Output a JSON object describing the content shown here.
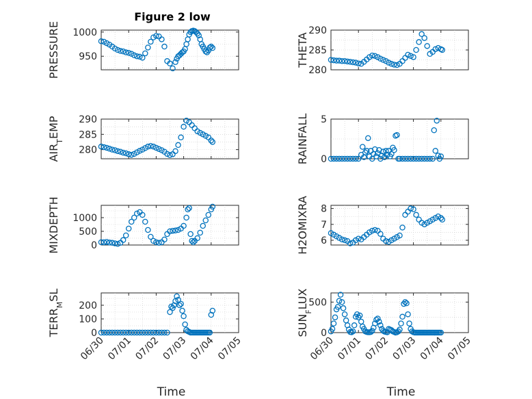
{
  "figure": {
    "title": "Figure 2 low",
    "marker_color": "#0072bd",
    "axis_color": "#262626",
    "grid_color": "#c8c8c8"
  },
  "chart_data": [
    {
      "type": "scatter",
      "panel": "pressure",
      "ylabel": "PRESSURE",
      "ylim": [
        922,
        1004
      ],
      "yticks": [
        950,
        1000
      ],
      "xlim": [
        0,
        5
      ],
      "xticks": [
        0,
        1,
        2,
        3,
        4,
        5
      ],
      "xticklabels": [
        "06/30",
        "07/01",
        "07/02",
        "07/03",
        "07/04",
        "07/05"
      ],
      "grid": true,
      "x": [
        0.0,
        0.1,
        0.2,
        0.3,
        0.4,
        0.5,
        0.6,
        0.7,
        0.8,
        0.9,
        1.0,
        1.1,
        1.2,
        1.3,
        1.4,
        1.5,
        1.6,
        1.7,
        1.8,
        1.9,
        2.0,
        2.1,
        2.2,
        2.3,
        2.4,
        2.5,
        2.6,
        2.7,
        2.75,
        2.8,
        2.85,
        2.9,
        2.95,
        3.0,
        3.05,
        3.1,
        3.15,
        3.2,
        3.25,
        3.3,
        3.35,
        3.4,
        3.45,
        3.5,
        3.55,
        3.6,
        3.65,
        3.7,
        3.75,
        3.8,
        3.85,
        3.9,
        3.95,
        4.0,
        4.05
      ],
      "y": [
        981,
        980,
        977,
        974,
        970,
        966,
        963,
        961,
        960,
        958,
        957,
        955,
        952,
        950,
        949,
        947,
        956,
        968,
        980,
        989,
        992,
        991,
        985,
        970,
        940,
        935,
        925,
        938,
        945,
        950,
        952,
        955,
        958,
        960,
        965,
        975,
        985,
        995,
        1000,
        1002,
        1003,
        1002,
        1000,
        997,
        993,
        985,
        975,
        970,
        965,
        960,
        958,
        962,
        968,
        970,
        967
      ]
    },
    {
      "type": "scatter",
      "panel": "theta",
      "ylabel": "THETA",
      "ylim": [
        280,
        290
      ],
      "yticks": [
        280,
        285,
        290
      ],
      "xlim": [
        0,
        5
      ],
      "xticks": [
        0,
        1,
        2,
        3,
        4,
        5
      ],
      "xticklabels": [
        "06/30",
        "07/01",
        "07/02",
        "07/03",
        "07/04",
        "07/05"
      ],
      "grid": true,
      "x": [
        0.0,
        0.1,
        0.2,
        0.3,
        0.4,
        0.5,
        0.6,
        0.7,
        0.8,
        0.9,
        1.0,
        1.1,
        1.2,
        1.3,
        1.4,
        1.5,
        1.6,
        1.7,
        1.8,
        1.9,
        2.0,
        2.1,
        2.2,
        2.3,
        2.4,
        2.5,
        2.6,
        2.7,
        2.8,
        2.9,
        3.0,
        3.1,
        3.2,
        3.3,
        3.4,
        3.5,
        3.6,
        3.7,
        3.8,
        3.9,
        4.0,
        4.05
      ],
      "y": [
        282.5,
        282.4,
        282.3,
        282.3,
        282.2,
        282.2,
        282.1,
        282.0,
        281.9,
        281.8,
        281.6,
        281.5,
        282.0,
        282.6,
        283.2,
        283.6,
        283.5,
        283.2,
        282.8,
        282.5,
        282.2,
        281.8,
        281.5,
        281.3,
        281.2,
        281.5,
        282.2,
        283.0,
        283.8,
        283.5,
        283.2,
        285.0,
        287.0,
        289.0,
        288.0,
        286.0,
        284.0,
        284.5,
        285.2,
        285.5,
        285.2,
        285.0
      ]
    },
    {
      "type": "scatter",
      "panel": "air_temp",
      "ylabel": "AIR_TEMP",
      "ylim": [
        277,
        290
      ],
      "yticks": [
        280,
        285,
        290
      ],
      "xlim": [
        0,
        5
      ],
      "xticks": [
        0,
        1,
        2,
        3,
        4,
        5
      ],
      "xticklabels": [
        "06/30",
        "07/01",
        "07/02",
        "07/03",
        "07/04",
        "07/05"
      ],
      "grid": true,
      "x": [
        0.0,
        0.1,
        0.2,
        0.3,
        0.4,
        0.5,
        0.6,
        0.7,
        0.8,
        0.9,
        1.0,
        1.1,
        1.2,
        1.3,
        1.4,
        1.5,
        1.6,
        1.7,
        1.8,
        1.9,
        2.0,
        2.1,
        2.2,
        2.3,
        2.4,
        2.5,
        2.6,
        2.7,
        2.8,
        2.9,
        3.0,
        3.1,
        3.2,
        3.3,
        3.4,
        3.5,
        3.6,
        3.7,
        3.8,
        3.9,
        4.0,
        4.05
      ],
      "y": [
        281.0,
        280.8,
        280.6,
        280.3,
        280.0,
        279.8,
        279.5,
        279.3,
        279.0,
        278.8,
        278.5,
        278.3,
        278.6,
        279.1,
        279.6,
        280.0,
        280.5,
        281.0,
        281.2,
        281.0,
        280.6,
        280.2,
        279.8,
        279.3,
        278.6,
        278.2,
        278.5,
        279.5,
        281.5,
        284.0,
        287.5,
        289.5,
        289.0,
        288.0,
        287.0,
        286.0,
        285.5,
        285.0,
        284.5,
        284.0,
        283.0,
        282.5
      ]
    },
    {
      "type": "scatter",
      "panel": "rainfall",
      "ylabel": "RAINFALL",
      "ylim": [
        0,
        5
      ],
      "yticks": [
        0,
        5
      ],
      "xlim": [
        0,
        5
      ],
      "xticks": [
        0,
        1,
        2,
        3,
        4,
        5
      ],
      "xticklabels": [
        "06/30",
        "07/01",
        "07/02",
        "07/03",
        "07/04",
        "07/05"
      ],
      "grid": true,
      "x": [
        0.0,
        0.1,
        0.2,
        0.3,
        0.4,
        0.5,
        0.6,
        0.7,
        0.8,
        0.9,
        1.0,
        1.1,
        1.15,
        1.2,
        1.25,
        1.3,
        1.35,
        1.4,
        1.45,
        1.5,
        1.55,
        1.6,
        1.65,
        1.7,
        1.75,
        1.8,
        1.85,
        1.9,
        1.95,
        2.0,
        2.05,
        2.1,
        2.15,
        2.2,
        2.25,
        2.3,
        2.35,
        2.4,
        2.45,
        2.5,
        2.6,
        2.7,
        2.8,
        2.9,
        3.0,
        3.1,
        3.2,
        3.3,
        3.4,
        3.5,
        3.6,
        3.7,
        3.75,
        3.8,
        3.85,
        3.9,
        3.95,
        4.0
      ],
      "y": [
        0,
        0,
        0,
        0,
        0,
        0,
        0,
        0,
        0,
        0,
        0,
        0.5,
        1.5,
        0.2,
        0.8,
        1.0,
        2.6,
        0.3,
        1.0,
        0,
        0.6,
        1.2,
        0.3,
        0.7,
        1.1,
        0,
        0.4,
        0.9,
        0.2,
        1.0,
        0.5,
        1.0,
        0.3,
        0.6,
        1.4,
        1.1,
        2.9,
        3.0,
        0,
        0,
        0,
        0,
        0,
        0,
        0,
        0,
        0,
        0,
        0,
        0,
        0,
        0,
        3.6,
        1.0,
        4.8,
        0.4,
        0,
        0.3
      ]
    },
    {
      "type": "scatter",
      "panel": "mixdepth",
      "ylabel": "MIXDEPTH",
      "ylim": [
        0,
        1450
      ],
      "yticks": [
        0,
        500,
        1000
      ],
      "xlim": [
        0,
        5
      ],
      "xticks": [
        0,
        1,
        2,
        3,
        4,
        5
      ],
      "xticklabels": [
        "06/30",
        "07/01",
        "07/02",
        "07/03",
        "07/04",
        "07/05"
      ],
      "grid": true,
      "x": [
        0.0,
        0.1,
        0.2,
        0.3,
        0.4,
        0.5,
        0.6,
        0.7,
        0.8,
        0.9,
        1.0,
        1.1,
        1.2,
        1.3,
        1.4,
        1.5,
        1.6,
        1.7,
        1.8,
        1.9,
        2.0,
        2.1,
        2.2,
        2.3,
        2.4,
        2.5,
        2.6,
        2.7,
        2.8,
        2.9,
        3.0,
        3.1,
        3.15,
        3.2,
        3.25,
        3.3,
        3.35,
        3.4,
        3.5,
        3.6,
        3.7,
        3.8,
        3.9,
        4.0,
        4.05
      ],
      "y": [
        100,
        100,
        110,
        90,
        80,
        60,
        40,
        80,
        180,
        350,
        600,
        850,
        1000,
        1150,
        1200,
        1100,
        850,
        550,
        300,
        150,
        100,
        80,
        100,
        200,
        400,
        500,
        520,
        530,
        550,
        600,
        700,
        1000,
        1300,
        1350,
        400,
        150,
        100,
        150,
        250,
        450,
        700,
        900,
        1100,
        1300,
        1400
      ]
    },
    {
      "type": "scatter",
      "panel": "h2omixra",
      "ylabel": "H2OMIXRA",
      "ylim": [
        5.7,
        8.2
      ],
      "yticks": [
        6,
        7,
        8
      ],
      "xlim": [
        0,
        5
      ],
      "xticks": [
        0,
        1,
        2,
        3,
        4,
        5
      ],
      "xticklabels": [
        "06/30",
        "07/01",
        "07/02",
        "07/03",
        "07/04",
        "07/05"
      ],
      "grid": true,
      "x": [
        0.0,
        0.1,
        0.2,
        0.3,
        0.4,
        0.5,
        0.6,
        0.7,
        0.8,
        0.9,
        1.0,
        1.1,
        1.2,
        1.3,
        1.4,
        1.5,
        1.6,
        1.7,
        1.8,
        1.9,
        2.0,
        2.1,
        2.2,
        2.3,
        2.4,
        2.5,
        2.6,
        2.7,
        2.8,
        2.9,
        3.0,
        3.1,
        3.2,
        3.3,
        3.4,
        3.5,
        3.6,
        3.7,
        3.8,
        3.9,
        4.0,
        4.05
      ],
      "y": [
        6.45,
        6.35,
        6.25,
        6.15,
        6.05,
        6.0,
        5.95,
        5.8,
        5.85,
        6.0,
        6.1,
        6.05,
        6.2,
        6.35,
        6.5,
        6.6,
        6.65,
        6.6,
        6.4,
        6.1,
        5.95,
        5.9,
        6.0,
        6.1,
        6.2,
        6.3,
        6.8,
        7.6,
        7.8,
        8.0,
        7.95,
        7.6,
        7.3,
        7.1,
        7.0,
        7.1,
        7.2,
        7.3,
        7.4,
        7.5,
        7.4,
        7.3
      ]
    },
    {
      "type": "scatter",
      "panel": "terr_msl",
      "ylabel": "TERR_MSL",
      "ylim": [
        0,
        290
      ],
      "yticks": [
        0,
        100,
        200
      ],
      "xlim": [
        0,
        5
      ],
      "xticks": [
        0,
        1,
        2,
        3,
        4,
        5
      ],
      "xticklabels": [
        "06/30",
        "07/01",
        "07/02",
        "07/03",
        "07/04",
        "07/05"
      ],
      "grid": true,
      "x": [
        0.0,
        0.1,
        0.2,
        0.3,
        0.4,
        0.5,
        0.6,
        0.7,
        0.8,
        0.9,
        1.0,
        1.1,
        1.2,
        1.3,
        1.4,
        1.5,
        1.6,
        1.7,
        1.8,
        1.9,
        2.0,
        2.1,
        2.2,
        2.3,
        2.4,
        2.5,
        2.55,
        2.6,
        2.65,
        2.7,
        2.75,
        2.8,
        2.85,
        2.9,
        2.95,
        3.0,
        3.05,
        3.1,
        3.15,
        3.2,
        3.25,
        3.3,
        3.35,
        3.4,
        3.45,
        3.5,
        3.55,
        3.6,
        3.65,
        3.7,
        3.75,
        3.8,
        3.85,
        3.9,
        3.95,
        4.0,
        4.05
      ],
      "y": [
        0,
        0,
        0,
        0,
        0,
        0,
        0,
        0,
        0,
        0,
        0,
        0,
        0,
        0,
        0,
        0,
        0,
        0,
        0,
        0,
        0,
        0,
        0,
        0,
        0,
        150,
        190,
        180,
        200,
        230,
        265,
        240,
        200,
        210,
        160,
        120,
        60,
        20,
        10,
        5,
        0,
        0,
        0,
        0,
        0,
        0,
        0,
        0,
        0,
        0,
        0,
        0,
        0,
        0,
        0,
        130,
        160
      ]
    },
    {
      "type": "scatter",
      "panel": "sun_flux",
      "ylabel": "SUN_FLUX",
      "ylim": [
        0,
        650
      ],
      "yticks": [
        0,
        500
      ],
      "xlim": [
        0,
        5
      ],
      "xticks": [
        0,
        1,
        2,
        3,
        4,
        5
      ],
      "xticklabels": [
        "06/30",
        "07/01",
        "07/02",
        "07/03",
        "07/04",
        "07/05"
      ],
      "grid": true,
      "x": [
        0.0,
        0.05,
        0.1,
        0.15,
        0.2,
        0.25,
        0.3,
        0.35,
        0.4,
        0.45,
        0.5,
        0.55,
        0.6,
        0.65,
        0.7,
        0.75,
        0.8,
        0.85,
        0.9,
        0.95,
        1.0,
        1.05,
        1.1,
        1.15,
        1.2,
        1.25,
        1.3,
        1.35,
        1.4,
        1.45,
        1.5,
        1.55,
        1.6,
        1.65,
        1.7,
        1.75,
        1.8,
        1.85,
        1.9,
        1.95,
        2.0,
        2.05,
        2.1,
        2.15,
        2.2,
        2.25,
        2.3,
        2.35,
        2.4,
        2.45,
        2.5,
        2.55,
        2.6,
        2.65,
        2.7,
        2.75,
        2.8,
        2.85,
        2.9,
        2.95,
        3.0,
        3.05,
        3.1,
        3.15,
        3.2,
        3.25,
        3.3,
        3.35,
        3.4,
        3.45,
        3.5,
        3.55,
        3.6,
        3.65,
        3.7,
        3.75,
        3.8,
        3.85,
        3.9,
        3.95,
        4.0
      ],
      "y": [
        20,
        60,
        150,
        250,
        380,
        420,
        520,
        620,
        500,
        400,
        300,
        200,
        120,
        50,
        10,
        5,
        20,
        120,
        260,
        300,
        250,
        280,
        180,
        100,
        60,
        20,
        10,
        5,
        5,
        10,
        30,
        80,
        150,
        210,
        230,
        180,
        120,
        60,
        30,
        15,
        10,
        5,
        60,
        50,
        40,
        20,
        10,
        0,
        5,
        20,
        50,
        150,
        260,
        470,
        500,
        480,
        300,
        150,
        60,
        20,
        5,
        0,
        0,
        0,
        0,
        0,
        0,
        0,
        0,
        0,
        0,
        0,
        0,
        0,
        0,
        0,
        0,
        0,
        0,
        0,
        0
      ]
    }
  ]
}
